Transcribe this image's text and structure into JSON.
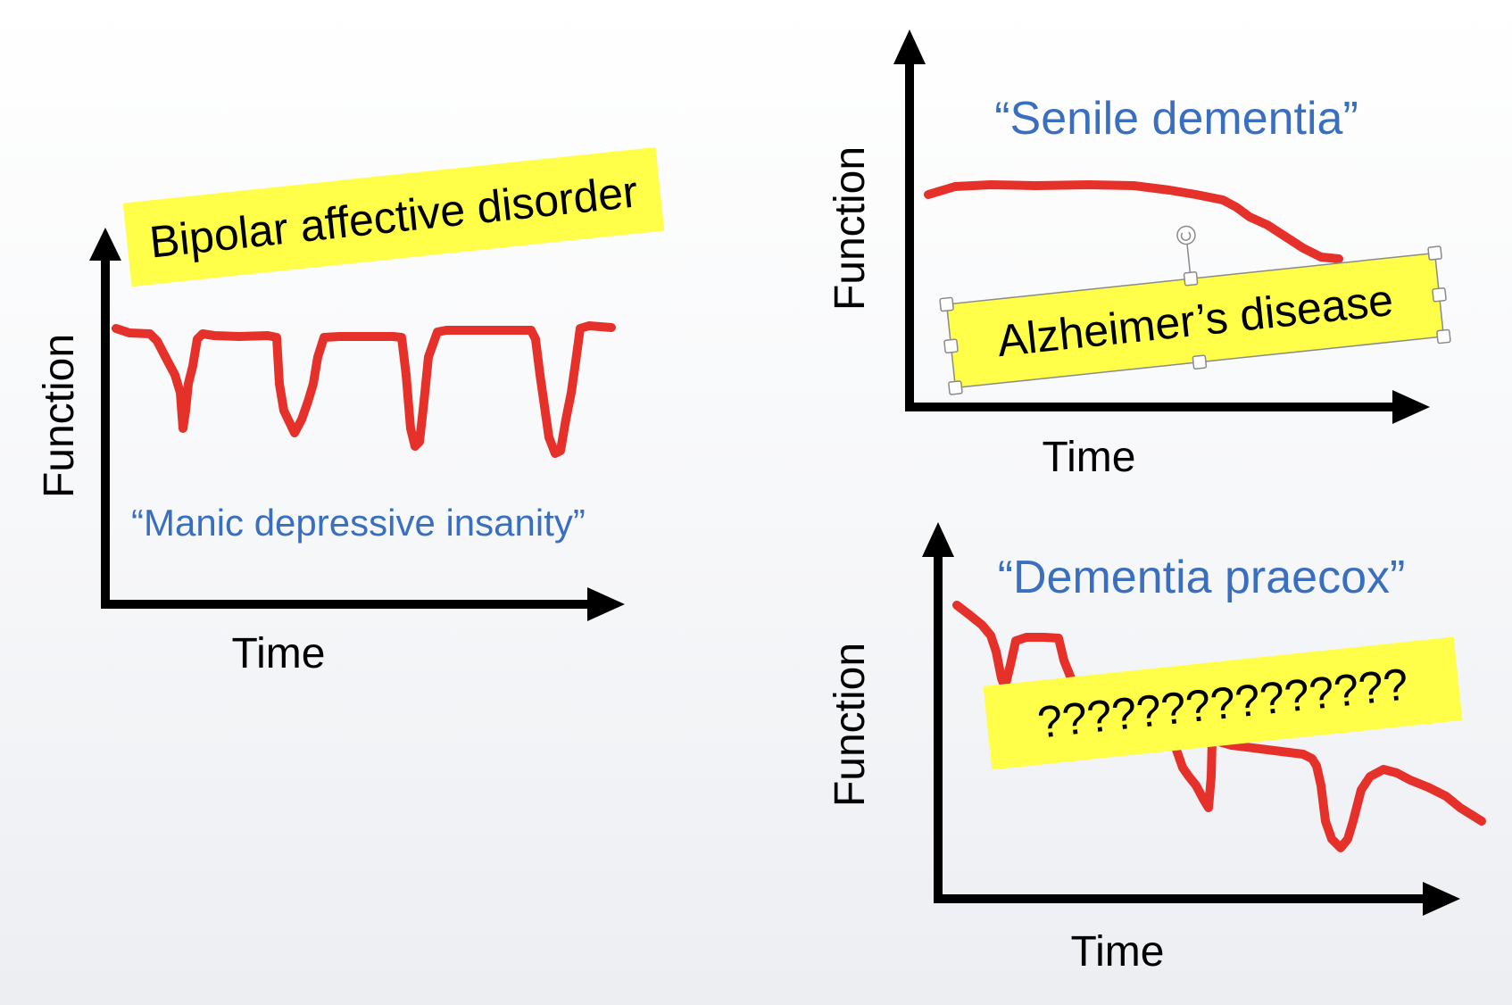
{
  "panels": {
    "bipolar": {
      "sticker": "Bipolar affective disorder",
      "quote": "“Manic depressive insanity”",
      "xlabel": "Time",
      "ylabel": "Function"
    },
    "alzheimer": {
      "quote": "“Senile dementia”",
      "sticker": "Alzheimer’s disease",
      "xlabel": "Time",
      "ylabel": "Function"
    },
    "praecox": {
      "quote": "“Dementia praecox”",
      "sticker": "???????????????",
      "xlabel": "Time",
      "ylabel": "Function"
    }
  },
  "colors": {
    "curve": "#e6312a",
    "quote": "#3a6fc0",
    "sticker": "#ffff4a",
    "axis": "#000000"
  }
}
